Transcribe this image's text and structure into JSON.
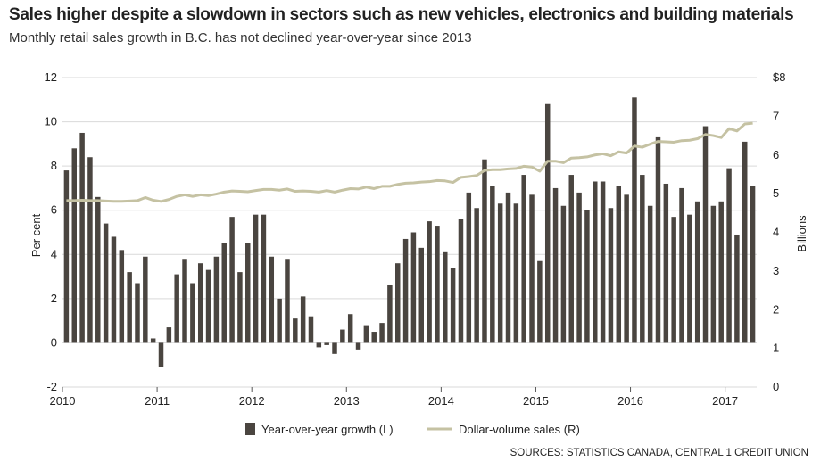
{
  "chart_data": {
    "type": "bar",
    "title": "Sales higher despite a slowdown in sectors such as new vehicles, electronics and building materials",
    "subtitle": "Monthly retail sales growth in B.C. has not declined year-over-year since 2013",
    "source": "SOURCES: STATISTICS CANADA, CENTRAL 1 CREDIT UNION",
    "ylabel_left": "Per cent",
    "ylabel_right": "Billions",
    "ylim_left": [
      -2,
      12
    ],
    "ylim_right": [
      0,
      8
    ],
    "yticks_left": [
      "-2",
      "0",
      "2",
      "4",
      "6",
      "8",
      "10",
      "12"
    ],
    "yticks_right": [
      "0",
      "1",
      "2",
      "3",
      "4",
      "5",
      "6",
      "7",
      "$8"
    ],
    "xticks": [
      "2010",
      "2011",
      "2012",
      "2013",
      "2014",
      "2015",
      "2016",
      "2017"
    ],
    "grid": true,
    "series": [
      {
        "name": "Year-over-year growth (L)",
        "type": "bar",
        "axis": "left",
        "color": "#4a4540",
        "values": [
          7.8,
          8.8,
          9.5,
          8.4,
          6.6,
          5.4,
          4.8,
          4.2,
          3.2,
          2.7,
          3.9,
          0.2,
          -1.1,
          0.7,
          3.1,
          3.8,
          2.7,
          3.6,
          3.3,
          3.9,
          4.5,
          5.7,
          3.2,
          4.5,
          5.8,
          5.8,
          3.9,
          2.0,
          3.8,
          1.1,
          2.1,
          1.2,
          -0.2,
          -0.1,
          -0.5,
          0.6,
          1.3,
          -0.3,
          0.8,
          0.5,
          0.9,
          2.6,
          3.6,
          4.7,
          5.0,
          4.3,
          5.5,
          5.3,
          4.1,
          3.4,
          5.6,
          6.8,
          6.1,
          8.3,
          7.1,
          6.3,
          6.8,
          6.3,
          7.6,
          6.7,
          3.7,
          10.8,
          7.0,
          6.2,
          7.6,
          6.8,
          6.0,
          7.3,
          7.3,
          6.1,
          7.1,
          6.7,
          11.1,
          7.6,
          6.2,
          9.3,
          7.2,
          5.7,
          7.0,
          5.8,
          6.4,
          9.8,
          6.2,
          6.4,
          7.9,
          4.9,
          9.1,
          7.1
        ]
      },
      {
        "name": "Dollar-volume sales (R)",
        "type": "line",
        "axis": "right",
        "color": "#c5c2a3",
        "values": [
          4.82,
          4.82,
          4.83,
          4.82,
          4.82,
          4.81,
          4.8,
          4.8,
          4.81,
          4.82,
          4.9,
          4.83,
          4.8,
          4.85,
          4.93,
          4.97,
          4.93,
          4.97,
          4.95,
          4.99,
          5.04,
          5.07,
          5.06,
          5.05,
          5.08,
          5.11,
          5.11,
          5.09,
          5.12,
          5.06,
          5.07,
          5.06,
          5.04,
          5.08,
          5.04,
          5.09,
          5.13,
          5.12,
          5.17,
          5.13,
          5.19,
          5.19,
          5.24,
          5.27,
          5.28,
          5.3,
          5.31,
          5.34,
          5.33,
          5.29,
          5.42,
          5.44,
          5.47,
          5.6,
          5.62,
          5.62,
          5.64,
          5.65,
          5.71,
          5.69,
          5.58,
          5.84,
          5.84,
          5.8,
          5.92,
          5.93,
          5.95,
          6.0,
          6.03,
          5.98,
          6.08,
          6.05,
          6.23,
          6.2,
          6.28,
          6.35,
          6.34,
          6.33,
          6.37,
          6.38,
          6.42,
          6.53,
          6.5,
          6.45,
          6.68,
          6.62,
          6.8,
          6.82
        ]
      }
    ]
  }
}
